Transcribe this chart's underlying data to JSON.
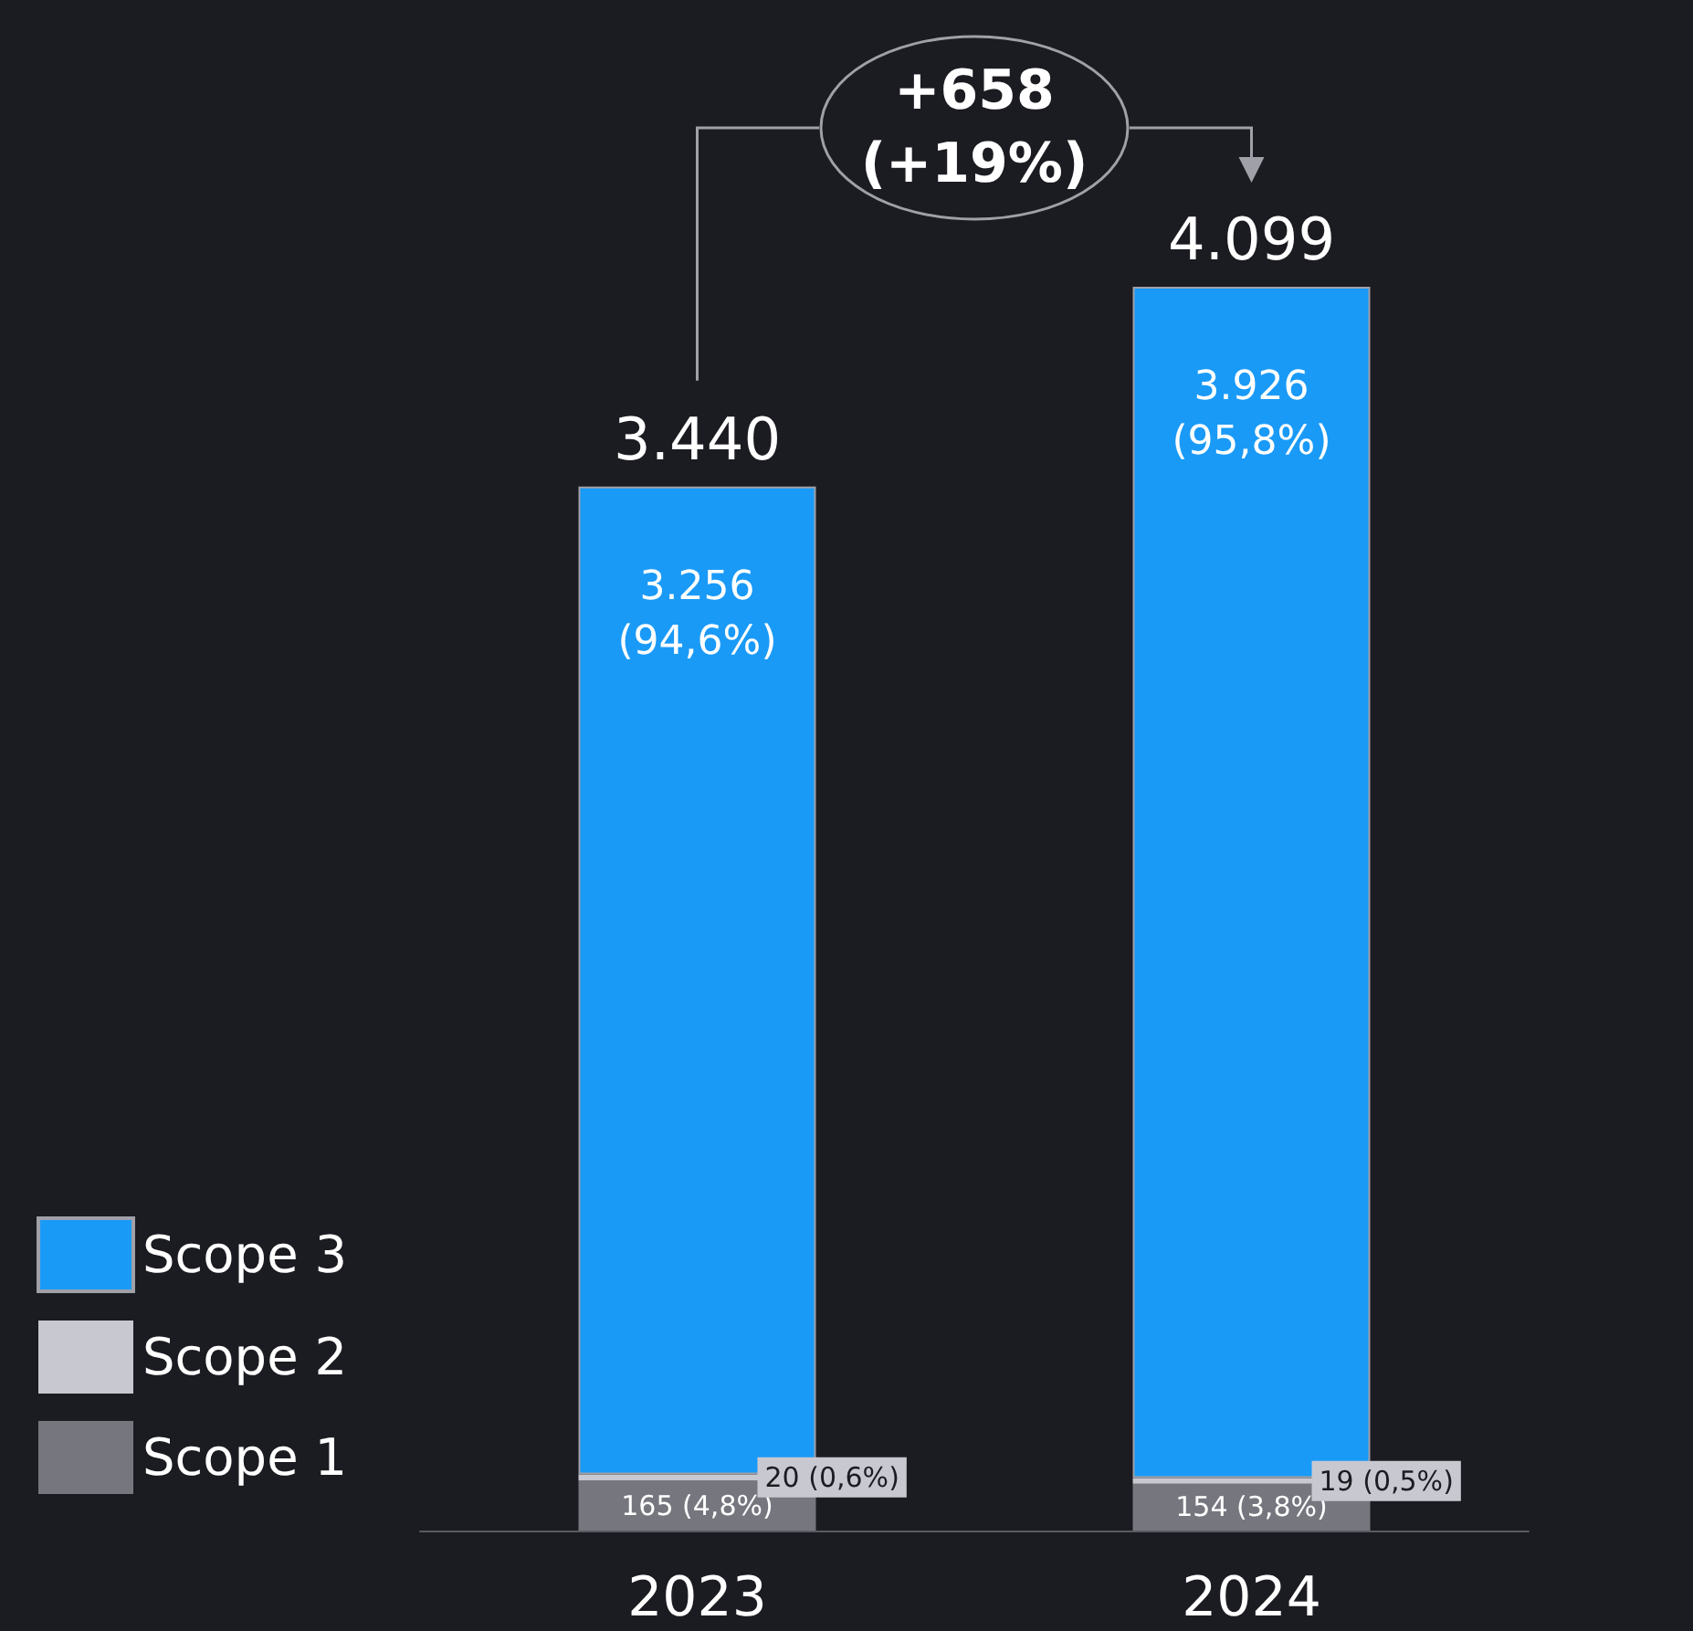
{
  "chart_data": {
    "type": "bar",
    "stacked": true,
    "categories": [
      "2023",
      "2024"
    ],
    "series": [
      {
        "name": "Scope 1",
        "color": "#76767f",
        "values": [
          165,
          154
        ],
        "value_labels": [
          "165\n(4,8%)",
          "154\n(3,8%)"
        ]
      },
      {
        "name": "Scope 2",
        "color": "#c8c8d0",
        "values": [
          20,
          19
        ],
        "value_labels": [
          "20\n(0,6%)",
          "19\n(0,5%)"
        ]
      },
      {
        "name": "Scope 3",
        "color": "#1a9af7",
        "values": [
          3256,
          3926
        ],
        "value_labels": [
          "3.256\n(94,6%)",
          "3.926\n(95,8%)"
        ]
      }
    ],
    "totals": [
      "3.440",
      "4.099"
    ],
    "annotations": [
      "+658\n(+19%)"
    ],
    "legend": "bottom left"
  }
}
